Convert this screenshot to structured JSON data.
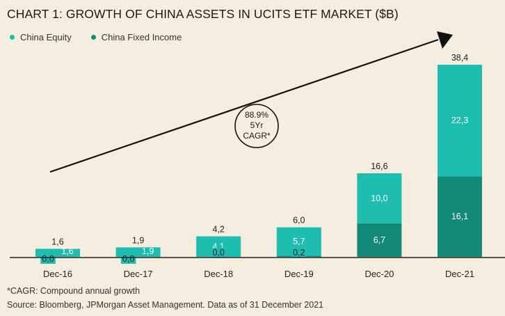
{
  "title": "CHART 1: GROWTH OF CHINA ASSETS IN UCITS ETF MARKET ($B)",
  "colors": {
    "equity": "#1dbdb0",
    "fixed_income": "#128a76",
    "label_light": "#ffffff",
    "label_dark": "#222222",
    "axis": "#222222",
    "arrow": "#111111"
  },
  "annotation": {
    "lines": [
      "88.9%",
      "5Yr",
      "CAGR*"
    ]
  },
  "footnotes": {
    "cagr": "*CAGR: Compound annual growth",
    "source": "Source: Bloomberg, JPMorgan Asset Management. Data as of 31 December 2021"
  },
  "chart_data": {
    "type": "bar",
    "stacked": true,
    "title": "CHART 1: GROWTH OF CHINA ASSETS IN UCITS ETF MARKET ($B)",
    "xlabel": "",
    "ylabel": "",
    "ylim": [
      0,
      38.4
    ],
    "grid": false,
    "legend_position": "top-left",
    "categories": [
      "Dec-16",
      "Dec-17",
      "Dec-18",
      "Dec-19",
      "Dec-20",
      "Dec-21"
    ],
    "series": [
      {
        "name": "China Fixed Income",
        "values": [
          0.0,
          0.0,
          0.0,
          0.2,
          6.7,
          16.1
        ],
        "labels": [
          "0,0",
          "0,0",
          "0,0",
          "0,2",
          "6,7",
          "16,1"
        ]
      },
      {
        "name": "China Equity",
        "values": [
          1.6,
          1.9,
          4.1,
          5.7,
          10.0,
          22.3
        ],
        "labels": [
          "1,6",
          "1,9",
          "4,1",
          "5,7",
          "10,0",
          "22,3"
        ]
      }
    ],
    "totals": [
      1.6,
      1.9,
      4.2,
      6.0,
      16.6,
      38.4
    ],
    "total_labels": [
      "1,6",
      "1,9",
      "4,2",
      "6,0",
      "16,6",
      "38,4"
    ]
  }
}
